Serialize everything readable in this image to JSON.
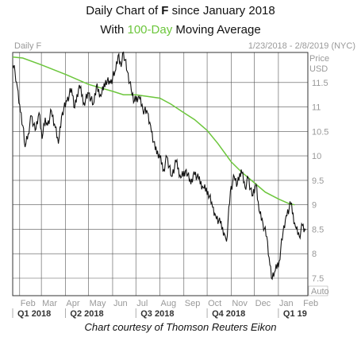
{
  "title": {
    "line1_prefix": "Daily Chart of ",
    "ticker": "F",
    "line1_suffix": " since January 2018",
    "line2_prefix": "With ",
    "ma_label": "100-Day",
    "line2_suffix": " Moving Average"
  },
  "caption": "Chart courtesy of Thomson Reuters Eikon",
  "colors": {
    "price": "#111111",
    "moving_average": "#6cc63c",
    "grid": "#555555",
    "background": "#ffffff",
    "axis_text": "#999999",
    "quarter_text": "#333333"
  },
  "chart_data": {
    "type": "line",
    "chart_label": "Daily F",
    "date_range": "1/23/2018 - 2/8/2019 (NYC)",
    "price_axis_title": [
      "Price",
      "USD"
    ],
    "auto_label": "Auto",
    "ylim": [
      7.25,
      12.3
    ],
    "y_ticks": [
      "11.5",
      "11",
      "10.5",
      "10",
      "9.5",
      "9",
      "8.5",
      "8",
      "7.5"
    ],
    "x_ticks": [
      "Feb",
      "Mar",
      "Apr",
      "May",
      "Jun",
      "Jul",
      "Aug",
      "Sep",
      "Oct",
      "Nov",
      "Dec",
      "Jan",
      "Feb"
    ],
    "quarters": [
      "Q1 2018",
      "Q2 2018",
      "Q3 2018",
      "Q4 2018",
      "Q1 19"
    ],
    "x_start": "2018-01-23",
    "x_end": "2019-02-08",
    "series": [
      {
        "label": "Price",
        "points": [
          [
            "2018-01-23",
            11.85
          ],
          [
            "2018-01-26",
            11.72
          ],
          [
            "2018-01-29",
            11.4
          ],
          [
            "2018-02-01",
            11.05
          ],
          [
            "2018-02-05",
            10.62
          ],
          [
            "2018-02-08",
            10.18
          ],
          [
            "2018-02-12",
            10.45
          ],
          [
            "2018-02-16",
            10.82
          ],
          [
            "2018-02-21",
            10.52
          ],
          [
            "2018-02-26",
            10.88
          ],
          [
            "2018-03-02",
            10.35
          ],
          [
            "2018-03-06",
            10.78
          ],
          [
            "2018-03-09",
            10.62
          ],
          [
            "2018-03-14",
            10.92
          ],
          [
            "2018-03-19",
            10.58
          ],
          [
            "2018-03-23",
            10.25
          ],
          [
            "2018-03-28",
            10.88
          ],
          [
            "2018-04-03",
            11.12
          ],
          [
            "2018-04-09",
            11.38
          ],
          [
            "2018-04-13",
            10.98
          ],
          [
            "2018-04-19",
            11.45
          ],
          [
            "2018-04-25",
            11.08
          ],
          [
            "2018-05-01",
            11.28
          ],
          [
            "2018-05-07",
            11.05
          ],
          [
            "2018-05-11",
            11.42
          ],
          [
            "2018-05-17",
            11.22
          ],
          [
            "2018-05-23",
            11.55
          ],
          [
            "2018-05-29",
            11.48
          ],
          [
            "2018-06-04",
            11.72
          ],
          [
            "2018-06-08",
            12.05
          ],
          [
            "2018-06-12",
            11.82
          ],
          [
            "2018-06-15",
            12.12
          ],
          [
            "2018-06-20",
            11.72
          ],
          [
            "2018-06-25",
            11.35
          ],
          [
            "2018-06-29",
            11.12
          ],
          [
            "2018-07-05",
            11.22
          ],
          [
            "2018-07-10",
            10.95
          ],
          [
            "2018-07-16",
            10.88
          ],
          [
            "2018-07-20",
            10.62
          ],
          [
            "2018-07-26",
            10.12
          ],
          [
            "2018-07-31",
            10.02
          ],
          [
            "2018-08-06",
            9.72
          ],
          [
            "2018-08-10",
            9.98
          ],
          [
            "2018-08-16",
            9.58
          ],
          [
            "2018-08-22",
            9.88
          ],
          [
            "2018-08-28",
            9.55
          ],
          [
            "2018-09-04",
            9.72
          ],
          [
            "2018-09-10",
            9.42
          ],
          [
            "2018-09-14",
            9.68
          ],
          [
            "2018-09-20",
            9.52
          ],
          [
            "2018-09-26",
            9.35
          ],
          [
            "2018-10-02",
            9.28
          ],
          [
            "2018-10-08",
            8.95
          ],
          [
            "2018-10-12",
            8.78
          ],
          [
            "2018-10-18",
            8.62
          ],
          [
            "2018-10-24",
            8.38
          ],
          [
            "2018-10-26",
            8.25
          ],
          [
            "2018-10-31",
            9.28
          ],
          [
            "2018-11-05",
            9.58
          ],
          [
            "2018-11-09",
            9.42
          ],
          [
            "2018-11-14",
            9.72
          ],
          [
            "2018-11-19",
            9.35
          ],
          [
            "2018-11-23",
            9.55
          ],
          [
            "2018-11-28",
            9.18
          ],
          [
            "2018-12-03",
            9.42
          ],
          [
            "2018-12-07",
            8.88
          ],
          [
            "2018-12-12",
            8.62
          ],
          [
            "2018-12-17",
            8.35
          ],
          [
            "2018-12-20",
            7.92
          ],
          [
            "2018-12-24",
            7.48
          ],
          [
            "2018-12-27",
            7.62
          ],
          [
            "2019-01-02",
            7.85
          ],
          [
            "2019-01-07",
            8.45
          ],
          [
            "2019-01-11",
            8.78
          ],
          [
            "2019-01-17",
            9.02
          ],
          [
            "2019-01-23",
            8.55
          ],
          [
            "2019-01-28",
            8.35
          ],
          [
            "2019-02-01",
            8.58
          ],
          [
            "2019-02-05",
            8.48
          ]
        ]
      },
      {
        "label": "100-Day Moving Average",
        "points": [
          [
            "2018-01-23",
            12.02
          ],
          [
            "2018-02-05",
            12.0
          ],
          [
            "2018-03-01",
            11.86
          ],
          [
            "2018-04-02",
            11.66
          ],
          [
            "2018-05-01",
            11.46
          ],
          [
            "2018-06-01",
            11.32
          ],
          [
            "2018-06-15",
            11.25
          ],
          [
            "2018-07-01",
            11.25
          ],
          [
            "2018-08-01",
            11.18
          ],
          [
            "2018-08-15",
            11.06
          ],
          [
            "2018-09-01",
            10.88
          ],
          [
            "2018-09-15",
            10.74
          ],
          [
            "2018-10-01",
            10.52
          ],
          [
            "2018-10-15",
            10.25
          ],
          [
            "2018-11-01",
            9.88
          ],
          [
            "2018-11-15",
            9.66
          ],
          [
            "2018-12-01",
            9.45
          ],
          [
            "2018-12-15",
            9.26
          ],
          [
            "2019-01-01",
            9.12
          ],
          [
            "2019-01-15",
            9.02
          ],
          [
            "2019-01-22",
            9.0
          ]
        ]
      }
    ]
  }
}
